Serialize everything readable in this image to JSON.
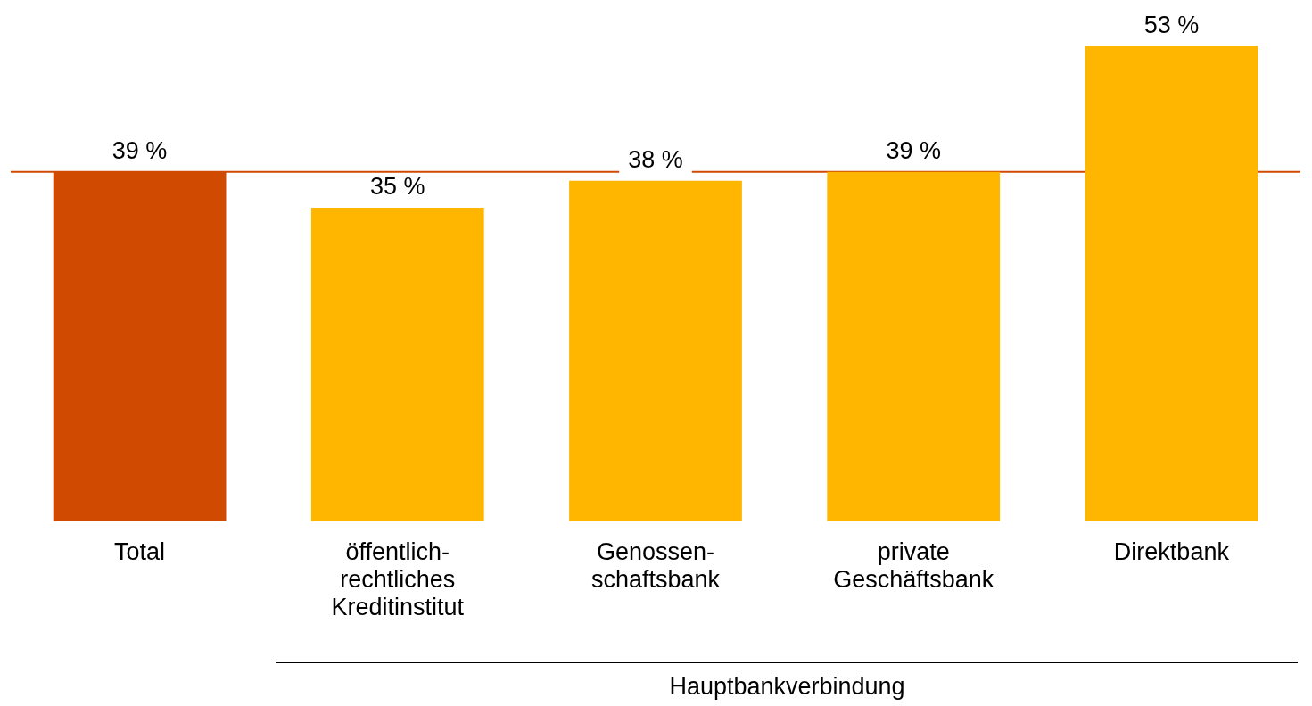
{
  "chart_data": {
    "type": "bar",
    "categories": [
      "Total",
      "öffentlich-\nrechtliches\nKreditinstitut",
      "Genossen-\nschaftsbank",
      "private\nGeschäftsbank",
      "Direktbank"
    ],
    "values": [
      39,
      35,
      38,
      39,
      53
    ],
    "colors": [
      "#d04a02",
      "#ffb600",
      "#ffb600",
      "#ffb600",
      "#ffb600"
    ],
    "value_labels": [
      "39 %",
      "35 %",
      "38 %",
      "39 %",
      "53 %"
    ],
    "ref_lines": [
      {
        "axis": "y",
        "value": 39,
        "color": "#d04a02"
      }
    ],
    "annotations": [
      "Hauptbankverbindung"
    ],
    "grid": false,
    "legend": false
  }
}
